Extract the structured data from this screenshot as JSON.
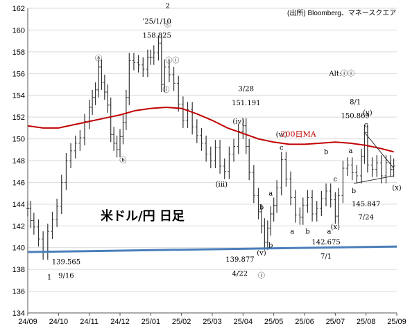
{
  "chart_data": {
    "type": "line",
    "title": "米ドル/円 日足",
    "source": "(出所) Bloomberg、マネースクエア",
    "ylim": [
      134,
      162
    ],
    "yticks": [
      134,
      136,
      138,
      140,
      142,
      144,
      146,
      148,
      150,
      152,
      154,
      156,
      158,
      160,
      162
    ],
    "xlim": [
      0,
      12
    ],
    "xticks": [
      {
        "x": 0,
        "label": "24/09"
      },
      {
        "x": 1,
        "label": "24/10"
      },
      {
        "x": 2,
        "label": "24/11"
      },
      {
        "x": 3,
        "label": "24/12"
      },
      {
        "x": 4,
        "label": "25/01"
      },
      {
        "x": 5,
        "label": "25/02"
      },
      {
        "x": 6,
        "label": "25/03"
      },
      {
        "x": 7,
        "label": "25/04"
      },
      {
        "x": 8,
        "label": "25/05"
      },
      {
        "x": 9,
        "label": "25/06"
      },
      {
        "x": 10,
        "label": "25/07"
      },
      {
        "x": 11,
        "label": "25/08"
      },
      {
        "x": 12,
        "label": "25/09"
      }
    ],
    "series": [
      {
        "type": "ohlc",
        "color": "#333333",
        "points": [
          [
            0.0,
            143.6
          ],
          [
            0.1,
            142.5
          ],
          [
            0.2,
            141.9
          ],
          [
            0.35,
            140.8
          ],
          [
            0.5,
            139.6
          ],
          [
            0.65,
            141.5
          ],
          [
            0.8,
            142.6
          ],
          [
            0.95,
            143.8
          ],
          [
            1.1,
            146.0
          ],
          [
            1.25,
            148.0
          ],
          [
            1.4,
            148.9
          ],
          [
            1.55,
            149.6
          ],
          [
            1.7,
            150.1
          ],
          [
            1.85,
            151.6
          ],
          [
            2.0,
            152.9
          ],
          [
            2.1,
            153.8
          ],
          [
            2.2,
            154.5
          ],
          [
            2.3,
            156.6
          ],
          [
            2.4,
            155.2
          ],
          [
            2.5,
            154.3
          ],
          [
            2.6,
            153.1
          ],
          [
            2.7,
            150.4
          ],
          [
            2.8,
            149.6
          ],
          [
            2.9,
            149.0
          ],
          [
            3.0,
            150.2
          ],
          [
            3.1,
            151.5
          ],
          [
            3.2,
            153.8
          ],
          [
            3.3,
            157.2
          ],
          [
            3.45,
            157.0
          ],
          [
            3.6,
            156.8
          ],
          [
            3.75,
            156.4
          ],
          [
            3.9,
            157.5
          ],
          [
            4.0,
            157.5
          ],
          [
            4.1,
            157.9
          ],
          [
            4.25,
            158.8
          ],
          [
            4.35,
            155.0
          ],
          [
            4.45,
            156.6
          ],
          [
            4.6,
            155.9
          ],
          [
            4.75,
            155.1
          ],
          [
            4.9,
            153.2
          ],
          [
            5.05,
            151.7
          ],
          [
            5.2,
            152.7
          ],
          [
            5.35,
            151.1
          ],
          [
            5.5,
            150.3
          ],
          [
            5.65,
            149.6
          ],
          [
            5.8,
            148.6
          ],
          [
            5.95,
            148.0
          ],
          [
            6.1,
            149.2
          ],
          [
            6.25,
            147.5
          ],
          [
            6.4,
            147.0
          ],
          [
            6.55,
            148.6
          ],
          [
            6.7,
            149.3
          ],
          [
            6.85,
            150.7
          ],
          [
            7.0,
            151.2
          ],
          [
            7.1,
            149.3
          ],
          [
            7.2,
            146.9
          ],
          [
            7.35,
            144.8
          ],
          [
            7.5,
            143.3
          ],
          [
            7.6,
            142.0
          ],
          [
            7.7,
            140.5
          ],
          [
            7.8,
            141.8
          ],
          [
            7.9,
            143.1
          ],
          [
            8.0,
            143.9
          ],
          [
            8.1,
            145.5
          ],
          [
            8.25,
            148.1
          ],
          [
            8.4,
            146.3
          ],
          [
            8.55,
            144.6
          ],
          [
            8.7,
            143.0
          ],
          [
            8.85,
            142.8
          ],
          [
            8.95,
            143.9
          ],
          [
            9.1,
            144.6
          ],
          [
            9.25,
            143.1
          ],
          [
            9.4,
            143.6
          ],
          [
            9.55,
            144.5
          ],
          [
            9.7,
            145.2
          ],
          [
            9.85,
            144.4
          ],
          [
            10.0,
            142.9
          ],
          [
            10.1,
            144.8
          ],
          [
            10.25,
            147.3
          ],
          [
            10.4,
            147.6
          ],
          [
            10.55,
            146.9
          ],
          [
            10.7,
            146.6
          ],
          [
            10.85,
            148.4
          ],
          [
            10.95,
            150.6
          ],
          [
            11.05,
            147.6
          ],
          [
            11.2,
            147.2
          ],
          [
            11.35,
            147.8
          ],
          [
            11.5,
            146.6
          ],
          [
            11.65,
            147.8
          ],
          [
            11.8,
            147.2
          ],
          [
            11.9,
            147.5
          ]
        ]
      },
      {
        "name": "200日MA",
        "color": "#c00000",
        "points": [
          [
            0,
            151.2
          ],
          [
            0.5,
            151.0
          ],
          [
            1,
            151.0
          ],
          [
            1.5,
            151.3
          ],
          [
            2,
            151.6
          ],
          [
            2.5,
            151.9
          ],
          [
            3,
            152.2
          ],
          [
            3.5,
            152.6
          ],
          [
            4,
            152.8
          ],
          [
            4.5,
            152.9
          ],
          [
            5,
            152.8
          ],
          [
            5.5,
            152.3
          ],
          [
            6,
            151.7
          ],
          [
            6.5,
            151.0
          ],
          [
            7,
            150.5
          ],
          [
            7.5,
            150.0
          ],
          [
            8,
            149.7
          ],
          [
            8.5,
            149.5
          ],
          [
            9,
            149.5
          ],
          [
            9.5,
            149.6
          ],
          [
            10,
            149.7
          ],
          [
            10.5,
            149.6
          ],
          [
            11,
            149.4
          ],
          [
            11.5,
            149.1
          ],
          [
            11.9,
            148.8
          ]
        ]
      },
      {
        "name": "support",
        "color": "#4a7ebb",
        "points": [
          [
            0,
            139.6
          ],
          [
            12,
            140.1
          ]
        ]
      }
    ],
    "trendlines": [
      {
        "points": [
          [
            10.95,
            150.6
          ],
          [
            11.9,
            147.3
          ]
        ],
        "color": "#333333"
      },
      {
        "points": [
          [
            10.6,
            145.9
          ],
          [
            11.9,
            146.6
          ]
        ],
        "color": "#333333"
      }
    ],
    "annotations": [
      {
        "text": "1",
        "x": 0.7,
        "y": 137.1,
        "size": 16
      },
      {
        "text": "139.565",
        "x": 1.25,
        "y": 138.5
      },
      {
        "text": "9/16",
        "x": 1.25,
        "y": 137.2
      },
      {
        "text": "ⓐ",
        "x": 2.3,
        "y": 157.2
      },
      {
        "text": "ⓑ",
        "x": 3.1,
        "y": 147.8
      },
      {
        "text": "'25/1/10",
        "x": 4.2,
        "y": 160.6
      },
      {
        "text": "158.825",
        "x": 4.2,
        "y": 159.3
      },
      {
        "text": "2",
        "x": 4.55,
        "y": 162.0,
        "size": 16
      },
      {
        "text": "ⓒ",
        "x": 4.55,
        "y": 160.3
      },
      {
        "text": "ⓘⓘ",
        "x": 4.7,
        "y": 157.0
      },
      {
        "text": "ⓘ",
        "x": 4.5,
        "y": 154.3
      },
      {
        "text": "3/28",
        "x": 7.1,
        "y": 154.4
      },
      {
        "text": "151.191",
        "x": 7.1,
        "y": 153.1
      },
      {
        "text": "(iv)",
        "x": 6.85,
        "y": 151.4
      },
      {
        "text": "(iii)",
        "x": 6.3,
        "y": 145.6
      },
      {
        "text": "139.877",
        "x": 6.9,
        "y": 138.7
      },
      {
        "text": "4/22",
        "x": 6.9,
        "y": 137.4
      },
      {
        "text": "(v)",
        "x": 7.6,
        "y": 139.3
      },
      {
        "text": "ⓘ",
        "x": 7.6,
        "y": 137.2
      },
      {
        "text": "a",
        "x": 7.9,
        "y": 144.8
      },
      {
        "text": "b",
        "x": 7.6,
        "y": 143.5
      },
      {
        "text": "a",
        "x": 8.6,
        "y": 141.3
      },
      {
        "text": "b",
        "x": 7.9,
        "y": 140.0
      },
      {
        "text": "(w)",
        "x": 8.25,
        "y": 150.2
      },
      {
        "text": "c",
        "x": 8.25,
        "y": 149.0
      },
      {
        "text": "b",
        "x": 9.1,
        "y": 141.3
      },
      {
        "text": "a",
        "x": 9.8,
        "y": 141.3
      },
      {
        "text": "b",
        "x": 9.7,
        "y": 148.6
      },
      {
        "text": "c",
        "x": 10.0,
        "y": 146.1
      },
      {
        "text": "(x)",
        "x": 10.0,
        "y": 141.7
      },
      {
        "text": "142.675",
        "x": 9.7,
        "y": 140.3
      },
      {
        "text": "7/1",
        "x": 9.7,
        "y": 139.0
      },
      {
        "text": "8/1",
        "x": 10.65,
        "y": 153.2
      },
      {
        "text": "150.869",
        "x": 10.65,
        "y": 151.9
      },
      {
        "text": "(y)",
        "x": 11.05,
        "y": 152.2
      },
      {
        "text": "c",
        "x": 11.0,
        "y": 151.1
      },
      {
        "text": "a",
        "x": 10.5,
        "y": 148.7
      },
      {
        "text": "b",
        "x": 10.6,
        "y": 145.0
      },
      {
        "text": "145.847",
        "x": 11.0,
        "y": 143.8
      },
      {
        "text": "7/24",
        "x": 11.0,
        "y": 142.6
      },
      {
        "text": "(x)",
        "x": 12.0,
        "y": 145.3
      },
      {
        "text": "Alt:",
        "x": 10.0,
        "y": 155.8
      },
      {
        "text": "ⓘⓘ",
        "x": 10.4,
        "y": 155.8
      }
    ],
    "label_ma": {
      "text": "200日MA",
      "x": 8.8,
      "y": 150.2,
      "color": "#c00000"
    }
  }
}
